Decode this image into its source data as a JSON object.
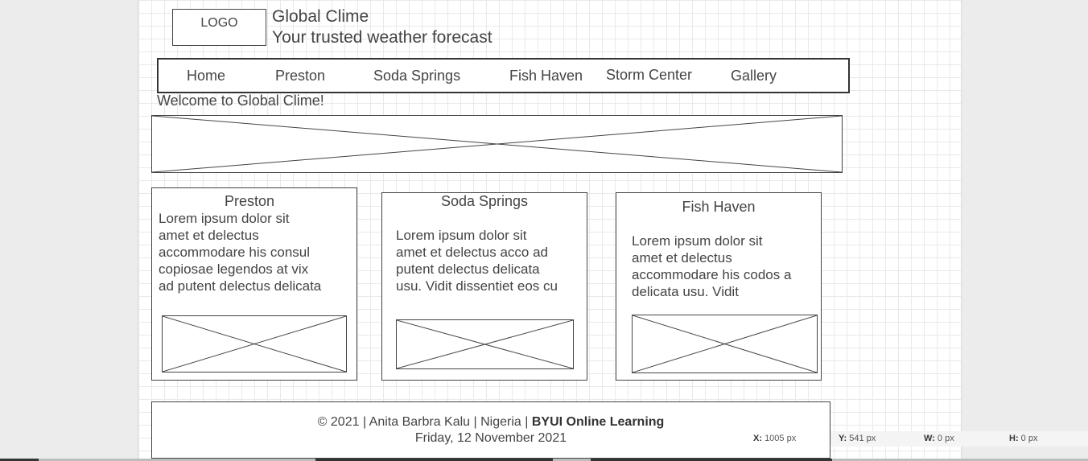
{
  "header": {
    "logo": "LOGO",
    "site_title": "Global Clime",
    "tagline": "Your trusted weather forecast"
  },
  "nav": {
    "items": [
      {
        "label": "Home"
      },
      {
        "label": "Preston"
      },
      {
        "label": "Soda Springs"
      },
      {
        "label": "Fish Haven"
      },
      {
        "label": "Storm Center"
      },
      {
        "label": "Gallery"
      }
    ]
  },
  "main": {
    "welcome": "Welcome to Global Clime!",
    "cards": [
      {
        "title": "Preston",
        "body": "Lorem ipsum dolor sit\namet et delectus\naccommodare his consul\ncopiosae legendos at vix\nad putent delectus delicata"
      },
      {
        "title": "Soda Springs",
        "body": "Lorem ipsum dolor sit\namet et delectus acco ad\nputent delectus delicata\nusu. Vidit dissentiet eos cu"
      },
      {
        "title": "Fish Haven",
        "body": "Lorem ipsum dolor sit\namet et delectus\naccommodare his codos a\ndelicata usu. Vidit"
      }
    ]
  },
  "footer": {
    "copyright": "© 2021 | Anita Barbra Kalu | Nigeria | ",
    "org": "BYUI Online Learning",
    "date": "Friday, 12 November 2021"
  },
  "status_bar": {
    "x_label": "X:",
    "x_value": "1005 px",
    "y_label": "Y:",
    "y_value": "541 px",
    "w_label": "W:",
    "w_value": "0 px",
    "h_label": "H:",
    "h_value": "0 px"
  },
  "colors": {
    "wireframe_stroke": "#444444",
    "grid_line": "#e9e9e9",
    "outer_background": "#ececec"
  }
}
